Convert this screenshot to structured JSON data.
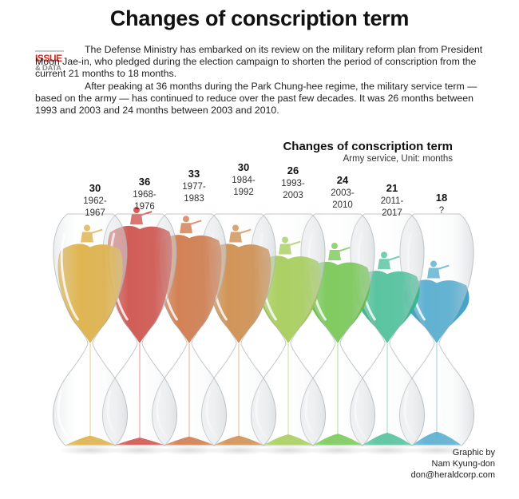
{
  "title": "Changes of conscription term",
  "badge": {
    "top": "ISSUE",
    "bottom": "& DATA"
  },
  "intro": {
    "p1": "The Defense Ministry has embarked on its review on the military reform plan from President Moon Jae-in, who pledged during the election campaign to shorten the period of conscription from the current 21 months to 18 months.",
    "p2": "After peaking at 36 months during the Park Chung-hee regime, the military service term — based on the army — has continued to reduce over the past few decades. It was 26 months between 1993 and 2003 and 24 months between 2003 and 2010."
  },
  "credit": {
    "line1": "Graphic by",
    "line2": "Nam Kyung-don",
    "line3": "don@heraldcorp.com"
  },
  "chart_data": {
    "type": "bar",
    "title": "Changes of conscription term",
    "subtitle": "Army service, Unit: months",
    "unit": "months",
    "categories": [
      "1962-1967",
      "1968-1976",
      "1977-1983",
      "1984-1992",
      "1993-2003",
      "2003-2010",
      "2011-2017",
      "?"
    ],
    "series": [
      {
        "name": "Army service",
        "values": [
          30,
          36,
          33,
          30,
          26,
          24,
          21,
          18
        ],
        "period_line1": [
          "1962-",
          "1968-",
          "1977-",
          "1984-",
          "1993-",
          "2003-",
          "2011-",
          "?"
        ],
        "period_line2": [
          "1967",
          "1976",
          "1983",
          "1992",
          "2003",
          "2010",
          "2017",
          ""
        ],
        "colors": [
          "#d8a329",
          "#c6362e",
          "#c8642c",
          "#c67b30",
          "#98c53e",
          "#62bf3a",
          "#33b68a",
          "#3a9fc7"
        ]
      }
    ]
  }
}
